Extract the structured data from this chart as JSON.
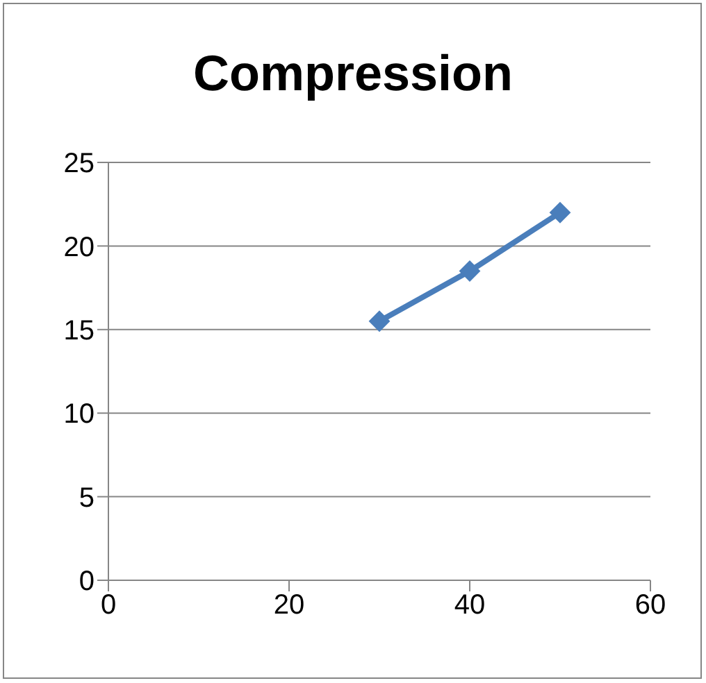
{
  "chart_data": {
    "type": "line",
    "title": "Compression",
    "x": [
      30,
      40,
      50
    ],
    "series": [
      {
        "color": "#4a7ebb",
        "values": [
          15.5,
          18.5,
          22
        ]
      }
    ],
    "xlim": [
      0,
      60
    ],
    "xticks": [
      0,
      20,
      40,
      60
    ],
    "ylim": [
      0,
      25
    ],
    "yticks": [
      0,
      5,
      10,
      15,
      20,
      25
    ],
    "grid": "y",
    "marker": "diamond"
  }
}
